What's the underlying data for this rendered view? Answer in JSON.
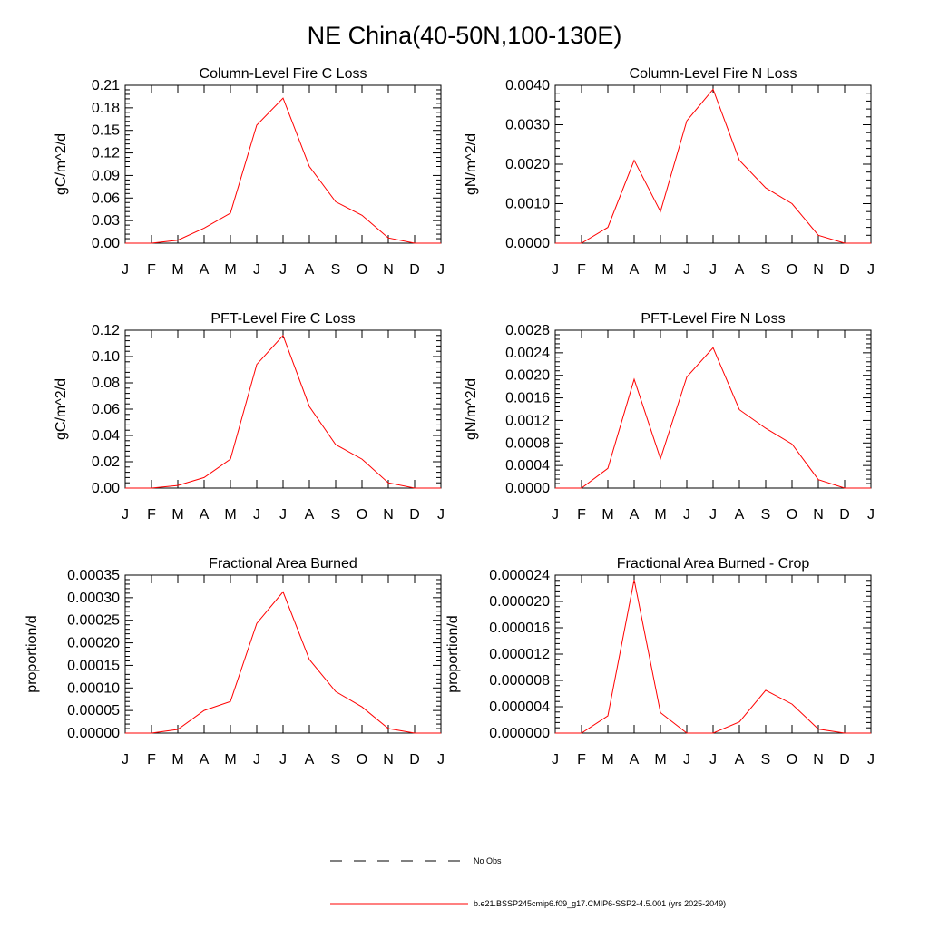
{
  "title": "NE China(40-50N,100-130E)",
  "legend": {
    "items": [
      {
        "label": "No Obs",
        "color": "#000000",
        "dash": true
      },
      {
        "label": "b.e21.BSSP245cmip6.f09_g17.CMIP6-SSP2-4.5.001 (yrs 2025-2049)",
        "color": "#ff0000",
        "dash": false
      }
    ]
  },
  "chart_data": [
    {
      "type": "line",
      "title": "Column-Level Fire C Loss",
      "ylabel": "gC/m^2/d",
      "xlabel": "",
      "categories": [
        "J",
        "F",
        "M",
        "A",
        "M",
        "J",
        "J",
        "A",
        "S",
        "O",
        "N",
        "D",
        "J"
      ],
      "ylim": [
        0,
        0.21
      ],
      "yticks": [
        0.0,
        0.03,
        0.06,
        0.09,
        0.12,
        0.15,
        0.18,
        0.21
      ],
      "ytick_labels": [
        "0.00",
        "0.03",
        "0.06",
        "0.09",
        "0.12",
        "0.15",
        "0.18",
        "0.21"
      ],
      "series": [
        {
          "name": "b.e21.BSSP245cmip6.f09_g17.CMIP6-SSP2-4.5.001 (yrs 2025-2049)",
          "color": "#ff0000",
          "values": [
            0.0,
            0.0,
            0.004,
            0.02,
            0.04,
            0.157,
            0.193,
            0.102,
            0.055,
            0.037,
            0.007,
            0.0,
            0.0
          ]
        }
      ]
    },
    {
      "type": "line",
      "title": "Column-Level Fire N Loss",
      "ylabel": "gN/m^2/d",
      "xlabel": "",
      "categories": [
        "J",
        "F",
        "M",
        "A",
        "M",
        "J",
        "J",
        "A",
        "S",
        "O",
        "N",
        "D",
        "J"
      ],
      "ylim": [
        0,
        0.004
      ],
      "yticks": [
        0.0,
        0.001,
        0.002,
        0.003,
        0.004
      ],
      "ytick_labels": [
        "0.0000",
        "0.0010",
        "0.0020",
        "0.0030",
        "0.0040"
      ],
      "series": [
        {
          "name": "b.e21.BSSP245cmip6.f09_g17.CMIP6-SSP2-4.5.001 (yrs 2025-2049)",
          "color": "#ff0000",
          "values": [
            0.0,
            0.0,
            0.0004,
            0.0021,
            0.0008,
            0.0031,
            0.0039,
            0.0021,
            0.0014,
            0.001,
            0.0002,
            0.0,
            0.0
          ]
        }
      ]
    },
    {
      "type": "line",
      "title": "PFT-Level Fire C Loss",
      "ylabel": "gC/m^2/d",
      "xlabel": "",
      "categories": [
        "J",
        "F",
        "M",
        "A",
        "M",
        "J",
        "J",
        "A",
        "S",
        "O",
        "N",
        "D",
        "J"
      ],
      "ylim": [
        0,
        0.12
      ],
      "yticks": [
        0.0,
        0.02,
        0.04,
        0.06,
        0.08,
        0.1,
        0.12
      ],
      "ytick_labels": [
        "0.00",
        "0.02",
        "0.04",
        "0.06",
        "0.08",
        "0.10",
        "0.12"
      ],
      "series": [
        {
          "name": "b.e21.BSSP245cmip6.f09_g17.CMIP6-SSP2-4.5.001 (yrs 2025-2049)",
          "color": "#ff0000",
          "values": [
            0.0,
            0.0,
            0.002,
            0.008,
            0.022,
            0.094,
            0.116,
            0.062,
            0.033,
            0.022,
            0.004,
            0.0,
            0.0
          ]
        }
      ]
    },
    {
      "type": "line",
      "title": "PFT-Level Fire N Loss",
      "ylabel": "gN/m^2/d",
      "xlabel": "",
      "categories": [
        "J",
        "F",
        "M",
        "A",
        "M",
        "J",
        "J",
        "A",
        "S",
        "O",
        "N",
        "D",
        "J"
      ],
      "ylim": [
        0,
        0.0028
      ],
      "yticks": [
        0.0,
        0.0004,
        0.0008,
        0.0012,
        0.0016,
        0.002,
        0.0024,
        0.0028
      ],
      "ytick_labels": [
        "0.0000",
        "0.0004",
        "0.0008",
        "0.0012",
        "0.0016",
        "0.0020",
        "0.0024",
        "0.0028"
      ],
      "series": [
        {
          "name": "b.e21.BSSP245cmip6.f09_g17.CMIP6-SSP2-4.5.001 (yrs 2025-2049)",
          "color": "#ff0000",
          "values": [
            0.0,
            0.0,
            0.00035,
            0.00193,
            0.00052,
            0.00197,
            0.00249,
            0.00139,
            0.00106,
            0.00078,
            0.00015,
            0.0,
            0.0
          ]
        }
      ]
    },
    {
      "type": "line",
      "title": "Fractional Area Burned",
      "ylabel": "proportion/d",
      "xlabel": "",
      "categories": [
        "J",
        "F",
        "M",
        "A",
        "M",
        "J",
        "J",
        "A",
        "S",
        "O",
        "N",
        "D",
        "J"
      ],
      "ylim": [
        0,
        0.00035
      ],
      "yticks": [
        0.0,
        5e-05,
        0.0001,
        0.00015,
        0.0002,
        0.00025,
        0.0003,
        0.00035
      ],
      "ytick_labels": [
        "0.00000",
        "0.00005",
        "0.00010",
        "0.00015",
        "0.00020",
        "0.00025",
        "0.00030",
        "0.00035"
      ],
      "series": [
        {
          "name": "b.e21.BSSP245cmip6.f09_g17.CMIP6-SSP2-4.5.001 (yrs 2025-2049)",
          "color": "#ff0000",
          "values": [
            0.0,
            0.0,
            8e-06,
            5e-05,
            7e-05,
            0.000243,
            0.000313,
            0.000163,
            9.2e-05,
            5.8e-05,
            1e-05,
            0.0,
            0.0
          ]
        }
      ]
    },
    {
      "type": "line",
      "title": "Fractional Area Burned - Crop",
      "ylabel": "proportion/d",
      "xlabel": "",
      "categories": [
        "J",
        "F",
        "M",
        "A",
        "M",
        "J",
        "J",
        "A",
        "S",
        "O",
        "N",
        "D",
        "J"
      ],
      "ylim": [
        0,
        2.4e-05
      ],
      "yticks": [
        0.0,
        4e-06,
        8e-06,
        1.2e-05,
        1.6e-05,
        2e-05,
        2.4e-05
      ],
      "ytick_labels": [
        "0.000000",
        "0.000004",
        "0.000008",
        "0.000012",
        "0.000016",
        "0.000020",
        "0.000024"
      ],
      "series": [
        {
          "name": "b.e21.BSSP245cmip6.f09_g17.CMIP6-SSP2-4.5.001 (yrs 2025-2049)",
          "color": "#ff0000",
          "values": [
            0.0,
            0.0,
            2.6e-06,
            2.33e-05,
            3.1e-06,
            0.0,
            0.0,
            1.7e-06,
            6.5e-06,
            4.4e-06,
            6e-07,
            0.0,
            0.0
          ]
        }
      ]
    }
  ]
}
